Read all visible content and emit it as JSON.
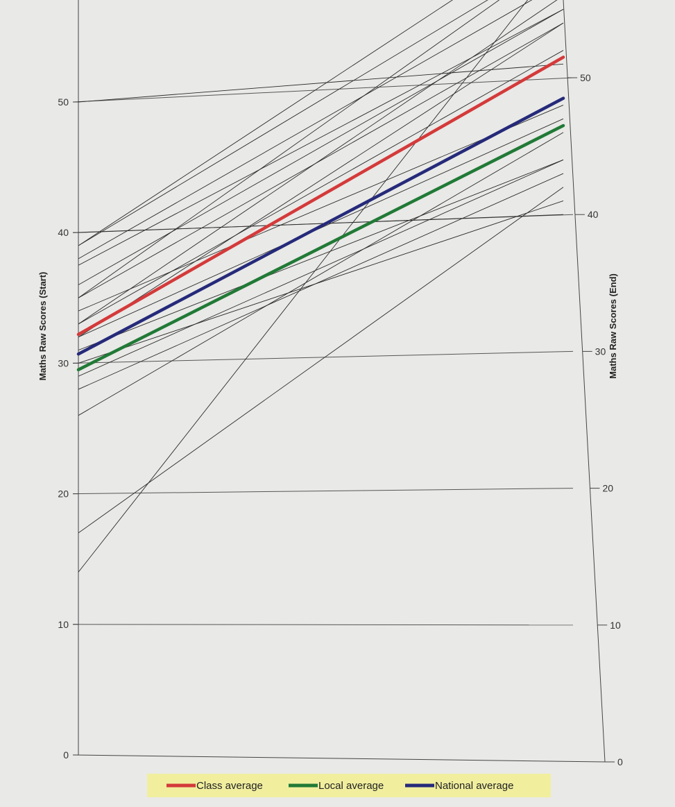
{
  "chart_data": {
    "type": "slope",
    "y_left": {
      "label": "Maths Raw Scores (Start)",
      "ticks": [
        0,
        10,
        20,
        30,
        40,
        50
      ],
      "range": [
        0,
        59
      ]
    },
    "y_right": {
      "label": "Maths Raw Scores (End)",
      "ticks": [
        0,
        10,
        20,
        30,
        40,
        50
      ],
      "range": [
        0,
        59
      ]
    },
    "grid": true,
    "legend_position": "bottom-center",
    "legend_background": "#f1ef9e",
    "student_color": "#2b2b2b",
    "students": [
      {
        "start": 39,
        "end": 61
      },
      {
        "start": 39,
        "end": 59
      },
      {
        "start": 38,
        "end": 57
      },
      {
        "start": 37.5,
        "end": 55
      },
      {
        "start": 36,
        "end": 55
      },
      {
        "start": 35,
        "end": 54
      },
      {
        "start": 35,
        "end": 59
      },
      {
        "start": 34,
        "end": 48
      },
      {
        "start": 33,
        "end": 56
      },
      {
        "start": 33,
        "end": 52
      },
      {
        "start": 32,
        "end": 47
      },
      {
        "start": 32,
        "end": 54
      },
      {
        "start": 31,
        "end": 44
      },
      {
        "start": 30,
        "end": 41
      },
      {
        "start": 29,
        "end": 44
      },
      {
        "start": 28,
        "end": 43
      },
      {
        "start": 26,
        "end": 46
      },
      {
        "start": 17,
        "end": 42
      },
      {
        "start": 14,
        "end": 59
      },
      {
        "start": 40,
        "end": 40
      },
      {
        "start": 50,
        "end": 51
      }
    ],
    "series": [
      {
        "name": "Class average",
        "start": 32.2,
        "end": 51.5,
        "color": "#d43a3a"
      },
      {
        "name": "Local average",
        "start": 29.5,
        "end": 46.5,
        "color": "#217a36"
      },
      {
        "name": "National average",
        "start": 30.7,
        "end": 48.5,
        "color": "#262a7a"
      }
    ]
  }
}
